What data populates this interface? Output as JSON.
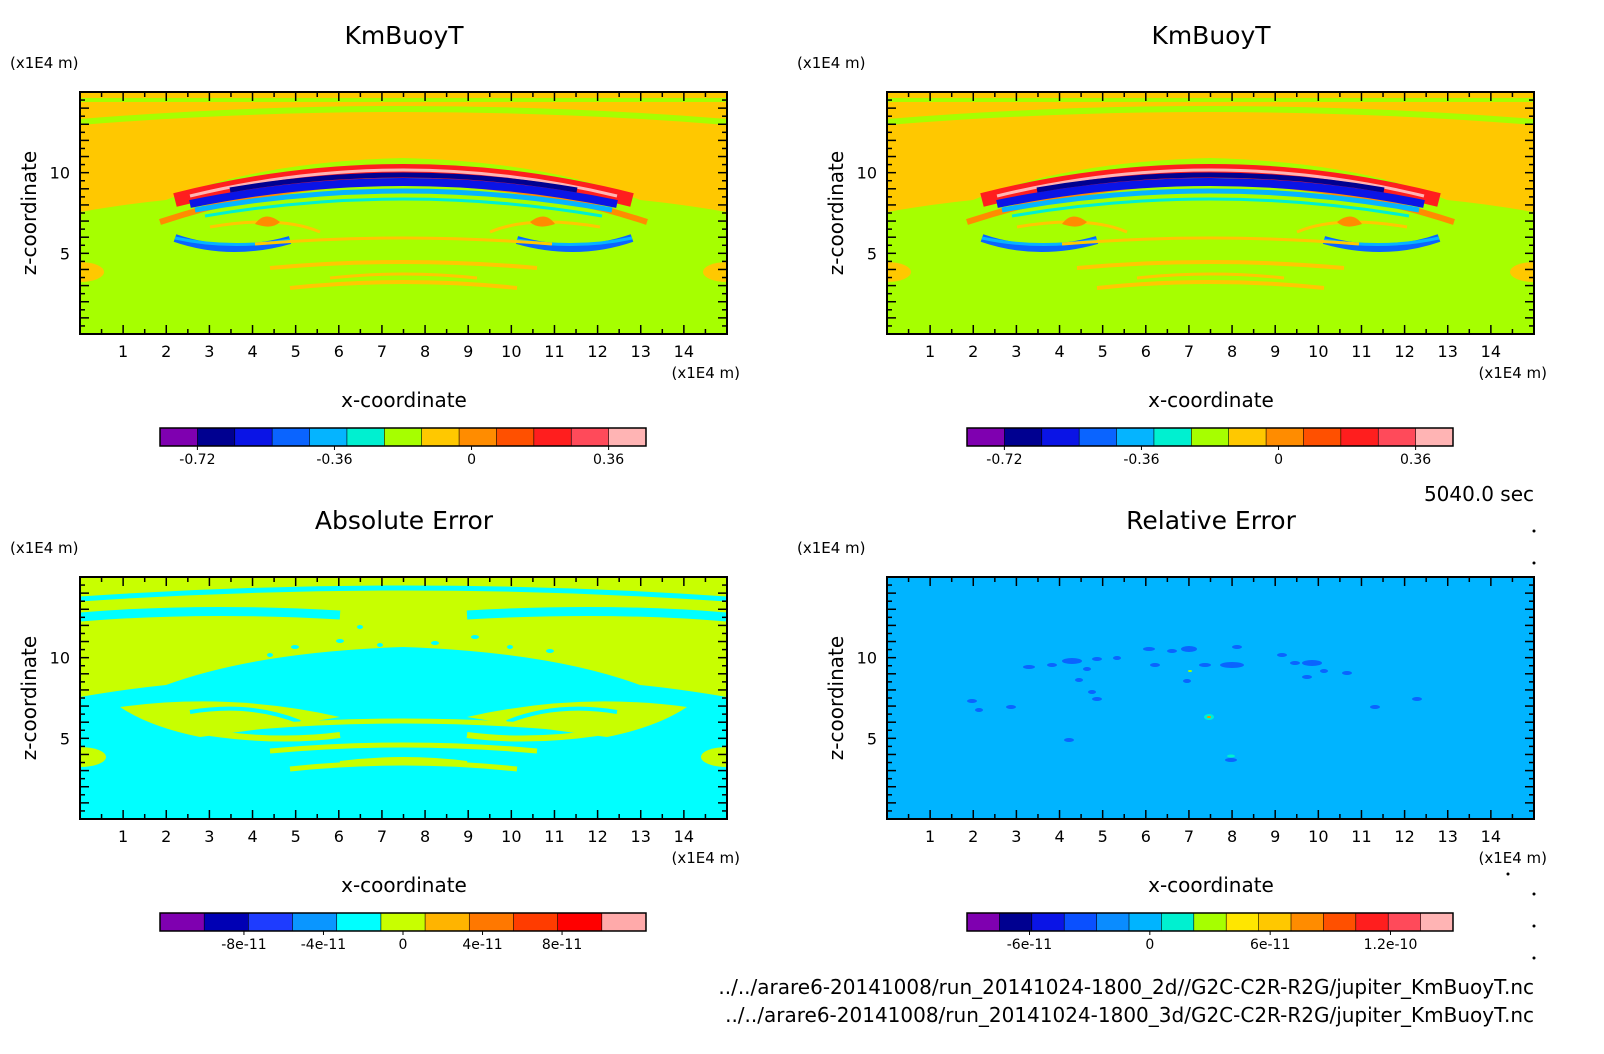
{
  "time_label": "5040.0 sec",
  "file_paths": [
    "../../arare6-20141008/run_20141024-1800_2d//G2C-C2R-R2G/jupiter_KmBuoyT.nc",
    "../../arare6-20141008/run_20141024-1800_3d/G2C-C2R-R2G/jupiter_KmBuoyT.nc"
  ],
  "chart_data": [
    {
      "type": "heatmap",
      "title": "KmBuoyT",
      "xlabel": "x-coordinate",
      "ylabel": "z-coordinate",
      "x_unit": "(x1E4 m)",
      "y_unit": "(x1E4 m)",
      "xlim": [
        0,
        15
      ],
      "ylim": [
        0,
        15
      ],
      "xticks": [
        1,
        2,
        3,
        4,
        5,
        6,
        7,
        8,
        9,
        10,
        11,
        12,
        13,
        14
      ],
      "yticks": [
        5,
        10
      ],
      "background": "#a6ff00",
      "colorbar": {
        "levels": [
          -0.81,
          -0.72,
          -0.63,
          -0.54,
          -0.45,
          -0.36,
          -0.27,
          -0.18,
          -0.09,
          0,
          0.09,
          0.18,
          0.27,
          0.36,
          0.45
        ],
        "colors": [
          "#7f00b0",
          "#000090",
          "#0a14e6",
          "#0a64ff",
          "#05b4ff",
          "#00f0d0",
          "#a6ff00",
          "#ffc800",
          "#ff8c00",
          "#ff5000",
          "#ff1e1e",
          "#ff4a5a",
          "#ffb4b4"
        ],
        "tick_values": [
          -0.72,
          -0.36,
          0,
          0.36
        ],
        "tick_labels": [
          "-0.72",
          "-0.36",
          "0",
          "0.36"
        ]
      }
    },
    {
      "type": "heatmap",
      "title": "KmBuoyT",
      "xlabel": "x-coordinate",
      "ylabel": "z-coordinate",
      "x_unit": "(x1E4 m)",
      "y_unit": "(x1E4 m)",
      "xlim": [
        0,
        15
      ],
      "ylim": [
        0,
        15
      ],
      "xticks": [
        1,
        2,
        3,
        4,
        5,
        6,
        7,
        8,
        9,
        10,
        11,
        12,
        13,
        14
      ],
      "yticks": [
        5,
        10
      ],
      "background": "#a6ff00",
      "colorbar": {
        "levels": [
          -0.81,
          -0.72,
          -0.63,
          -0.54,
          -0.45,
          -0.36,
          -0.27,
          -0.18,
          -0.09,
          0,
          0.09,
          0.18,
          0.27,
          0.36,
          0.45
        ],
        "colors": [
          "#7f00b0",
          "#000090",
          "#0a14e6",
          "#0a64ff",
          "#05b4ff",
          "#00f0d0",
          "#a6ff00",
          "#ffc800",
          "#ff8c00",
          "#ff5000",
          "#ff1e1e",
          "#ff4a5a",
          "#ffb4b4"
        ],
        "tick_values": [
          -0.72,
          -0.36,
          0,
          0.36
        ],
        "tick_labels": [
          "-0.72",
          "-0.36",
          "0",
          "0.36"
        ]
      }
    },
    {
      "type": "heatmap",
      "title": "Absolute Error",
      "xlabel": "x-coordinate",
      "ylabel": "z-coordinate",
      "x_unit": "(x1E4 m)",
      "y_unit": "(x1E4 m)",
      "xlim": [
        0,
        15
      ],
      "ylim": [
        0,
        15
      ],
      "xticks": [
        1,
        2,
        3,
        4,
        5,
        6,
        7,
        8,
        9,
        10,
        11,
        12,
        13,
        14
      ],
      "yticks": [
        5,
        10
      ],
      "background": "#00ffff",
      "colorbar": {
        "levels": [
          -1.2e-10,
          -1e-10,
          -8e-11,
          -6e-11,
          -4e-11,
          -2e-11,
          0,
          2e-11,
          4e-11,
          6e-11,
          8e-11,
          1e-10,
          1.2e-10
        ],
        "colors": [
          "#7f00b0",
          "#0000b4",
          "#1e3cff",
          "#0a96ff",
          "#00ffff",
          "#c8ff00",
          "#ffb400",
          "#ff7800",
          "#ff3c00",
          "#ff0000",
          "#ffaaaa"
        ],
        "tick_values": [
          -8e-11,
          -4e-11,
          0,
          4e-11,
          8e-11
        ],
        "tick_labels": [
          "-8e-11",
          "-4e-11",
          "0",
          "4e-11",
          "8e-11"
        ]
      }
    },
    {
      "type": "heatmap",
      "title": "Relative Error",
      "xlabel": "x-coordinate",
      "ylabel": "z-coordinate",
      "x_unit": "(x1E4 m)",
      "y_unit": "(x1E4 m)",
      "xlim": [
        0,
        15
      ],
      "ylim": [
        0,
        15
      ],
      "xticks": [
        1,
        2,
        3,
        4,
        5,
        6,
        7,
        8,
        9,
        10,
        11,
        12,
        13,
        14
      ],
      "yticks": [
        5,
        10
      ],
      "background": "#00b4ff",
      "colorbar": {
        "levels": [
          -9e-11,
          -7.5e-11,
          -6e-11,
          -4.5e-11,
          -3e-11,
          -1.5e-11,
          0,
          1.5e-11,
          3e-11,
          4.5e-11,
          6e-11,
          7.5e-11,
          9e-11,
          1.05e-10,
          1.2e-10,
          1.35e-10,
          1.5e-10
        ],
        "colors": [
          "#7f00b0",
          "#000090",
          "#0a14e6",
          "#0a50ff",
          "#0a8cff",
          "#00b4ff",
          "#00f0d0",
          "#a6ff00",
          "#ffe600",
          "#ffc800",
          "#ff8c00",
          "#ff5000",
          "#ff1e1e",
          "#ff4a5a",
          "#ffb4b4"
        ],
        "tick_values": [
          -6e-11,
          0,
          6e-11,
          1.2e-10
        ],
        "tick_labels": [
          "-6e-11",
          "0",
          "6e-11",
          "1.2e-10"
        ]
      }
    }
  ]
}
